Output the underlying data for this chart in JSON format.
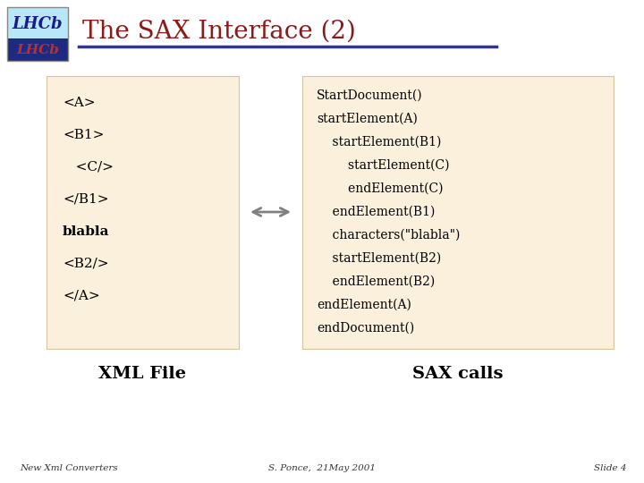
{
  "title": "The SAX Interface (2)",
  "title_color": "#8B1A1A",
  "title_fontsize": 20,
  "bg_color": "#FFFFFF",
  "box_color": "#FAF0DC",
  "box_edge_color": "#D4C4A0",
  "header_line_color": "#3030A0",
  "xml_lines": [
    "<A>",
    "<B1>",
    "   <C/>",
    "</B1>",
    "blabla",
    "<B2/>",
    "</A>"
  ],
  "xml_bold_line": "blabla",
  "sax_lines": [
    "StartDocument()",
    "startElement(A)",
    "    startElement(B1)",
    "        startElement(C)",
    "        endElement(C)",
    "    endElement(B1)",
    "    characters(\"blabla\")",
    "    startElement(B2)",
    "    endElement(B2)",
    "endElement(A)",
    "endDocument()"
  ],
  "xml_label": "XML File",
  "sax_label": "SAX calls",
  "footer_left": "New Xml Converters",
  "footer_center": "S. Ponce,  21May 2001",
  "footer_right": "Slide 4",
  "logo_bg_top": "#CCF0FF",
  "logo_bg_bot": "#2030A0",
  "logo_text_color": "#1A1A8B",
  "logo_text2_color": "#CC0000"
}
